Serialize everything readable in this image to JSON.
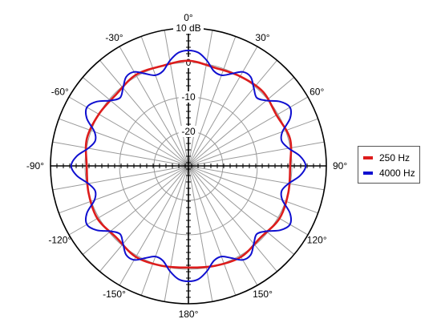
{
  "chart_data": {
    "type": "polar-line",
    "angle_unit": "deg",
    "angle_zero": "top",
    "angle_direction": "clockwise",
    "radial_axis": {
      "unit": "dB",
      "range": [
        -30,
        10
      ],
      "ticks": [
        10,
        0,
        -10,
        -20
      ],
      "tick_labels": [
        "10 dB",
        "0",
        "-10",
        "-20"
      ]
    },
    "angle_labels": [
      {
        "angle": 0,
        "label": "0°"
      },
      {
        "angle": 30,
        "label": "30°"
      },
      {
        "angle": 60,
        "label": "60°"
      },
      {
        "angle": 90,
        "label": "90°"
      },
      {
        "angle": 120,
        "label": "120°"
      },
      {
        "angle": 150,
        "label": "150°"
      },
      {
        "angle": 180,
        "label": "180°"
      },
      {
        "angle": -150,
        "label": "-150°"
      },
      {
        "angle": -120,
        "label": "-120°"
      },
      {
        "angle": -90,
        "label": "-90°"
      },
      {
        "angle": -60,
        "label": "-60°"
      },
      {
        "angle": -30,
        "label": "-30°"
      }
    ],
    "grid": true,
    "radial_gridline_step_deg": 10,
    "legend_position": "right",
    "series": [
      {
        "name": "250 Hz",
        "color": "#dd1c1c",
        "angles": [
          0,
          15,
          30,
          45,
          60,
          75,
          90,
          105,
          120,
          135,
          150,
          165,
          180,
          195,
          210,
          225,
          240,
          255,
          270,
          285,
          300,
          315,
          330,
          345
        ],
        "values": [
          0.5,
          -0.5,
          0,
          0.5,
          -0.5,
          0.5,
          -0.5,
          0,
          0.5,
          -0.5,
          0.5,
          0,
          -0.5,
          0,
          0.5,
          -0.5,
          0.5,
          0,
          -0.5,
          0.5,
          0,
          -0.5,
          0.5,
          0
        ]
      },
      {
        "name": "4000 Hz",
        "color": "#1010d0",
        "angles": [
          0,
          5,
          10,
          15,
          20,
          25,
          30,
          35,
          40,
          45,
          50,
          55,
          60,
          65,
          70,
          75,
          80,
          85,
          90,
          95,
          100,
          105,
          110,
          115,
          120,
          125,
          130,
          135,
          140,
          145,
          150,
          155,
          160,
          165,
          170,
          175,
          180,
          185,
          190,
          195,
          200,
          205,
          210,
          215,
          220,
          225,
          230,
          235,
          240,
          245,
          250,
          255,
          260,
          265,
          270,
          275,
          280,
          285,
          290,
          295,
          300,
          305,
          310,
          315,
          320,
          325,
          330,
          335,
          340,
          345,
          350,
          355
        ],
        "values": [
          3.5,
          3,
          1,
          -1.5,
          -2,
          -0.5,
          1.5,
          1.5,
          -0.5,
          -2,
          -0.5,
          2.5,
          4,
          2.5,
          -1,
          -2,
          -0.5,
          2.5,
          4,
          2.5,
          -0.5,
          -2,
          -1,
          2.5,
          4,
          2.5,
          -0.5,
          -2,
          -0.5,
          1.5,
          1.5,
          -0.5,
          -2,
          -1.5,
          1,
          3,
          3.5,
          3,
          1,
          -1.5,
          -2,
          -0.5,
          1.5,
          1.5,
          -0.5,
          -2,
          -0.5,
          2.5,
          4,
          2.5,
          -1,
          -2,
          -0.5,
          2.5,
          4,
          2.5,
          -0.5,
          -2,
          -1,
          2.5,
          4,
          2.5,
          -0.5,
          -2,
          -0.5,
          1.5,
          1.5,
          -0.5,
          -2,
          -1.5,
          1,
          3
        ]
      }
    ]
  }
}
